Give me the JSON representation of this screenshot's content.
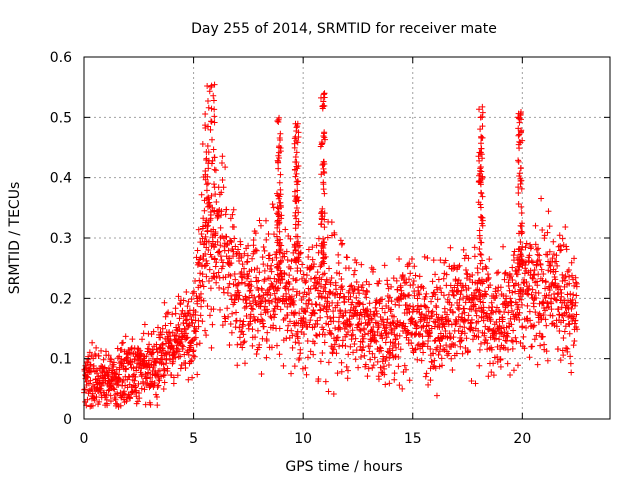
{
  "chart_data": {
    "type": "scatter",
    "title": "Day 255 of 2014, SRMTID for receiver mate",
    "xlabel": "GPS time / hours",
    "ylabel": "SRMTID / TECUs",
    "xlim": [
      0,
      24
    ],
    "ylim": [
      0,
      0.6
    ],
    "xticks": [
      0,
      5,
      10,
      15,
      20
    ],
    "xtick_labels": [
      "0",
      "5",
      "10",
      "15",
      "20"
    ],
    "yticks": [
      0,
      0.1,
      0.2,
      0.3,
      0.4,
      0.5,
      0.6
    ],
    "ytick_labels": [
      "0",
      "0.1",
      "0.2",
      "0.3",
      "0.4",
      "0.5",
      "0.6"
    ],
    "grid": true,
    "marker": "plus",
    "color": "#ff0000",
    "x_data_range": [
      0,
      22.5
    ],
    "trend_profile": [
      {
        "t": 0.0,
        "median": 0.07,
        "spread": 0.03
      },
      {
        "t": 1.0,
        "median": 0.06,
        "spread": 0.03
      },
      {
        "t": 2.0,
        "median": 0.08,
        "spread": 0.035
      },
      {
        "t": 3.0,
        "median": 0.08,
        "spread": 0.035
      },
      {
        "t": 4.0,
        "median": 0.12,
        "spread": 0.04
      },
      {
        "t": 5.0,
        "median": 0.15,
        "spread": 0.05
      },
      {
        "t": 5.5,
        "median": 0.3,
        "spread": 0.08
      },
      {
        "t": 6.0,
        "median": 0.3,
        "spread": 0.09
      },
      {
        "t": 7.0,
        "median": 0.22,
        "spread": 0.06
      },
      {
        "t": 8.0,
        "median": 0.2,
        "spread": 0.06
      },
      {
        "t": 9.0,
        "median": 0.22,
        "spread": 0.06
      },
      {
        "t": 10.0,
        "median": 0.18,
        "spread": 0.07
      },
      {
        "t": 11.0,
        "median": 0.2,
        "spread": 0.07
      },
      {
        "t": 12.0,
        "median": 0.18,
        "spread": 0.06
      },
      {
        "t": 13.0,
        "median": 0.15,
        "spread": 0.05
      },
      {
        "t": 14.0,
        "median": 0.15,
        "spread": 0.05
      },
      {
        "t": 15.0,
        "median": 0.18,
        "spread": 0.06
      },
      {
        "t": 16.0,
        "median": 0.15,
        "spread": 0.06
      },
      {
        "t": 17.0,
        "median": 0.18,
        "spread": 0.06
      },
      {
        "t": 18.0,
        "median": 0.2,
        "spread": 0.06
      },
      {
        "t": 19.0,
        "median": 0.15,
        "spread": 0.05
      },
      {
        "t": 20.0,
        "median": 0.22,
        "spread": 0.07
      },
      {
        "t": 21.0,
        "median": 0.22,
        "spread": 0.07
      },
      {
        "t": 22.0,
        "median": 0.2,
        "spread": 0.06
      },
      {
        "t": 22.5,
        "median": 0.18,
        "spread": 0.05
      }
    ],
    "spikes": [
      {
        "t_start": 5.4,
        "t_end": 6.0,
        "peak": 0.57
      },
      {
        "t_start": 8.8,
        "t_end": 9.0,
        "peak": 0.5
      },
      {
        "t_start": 9.6,
        "t_end": 9.8,
        "peak": 0.49
      },
      {
        "t_start": 10.8,
        "t_end": 11.0,
        "peak": 0.54
      },
      {
        "t_start": 18.0,
        "t_end": 18.2,
        "peak": 0.52
      },
      {
        "t_start": 19.8,
        "t_end": 20.0,
        "peak": 0.51
      }
    ]
  }
}
